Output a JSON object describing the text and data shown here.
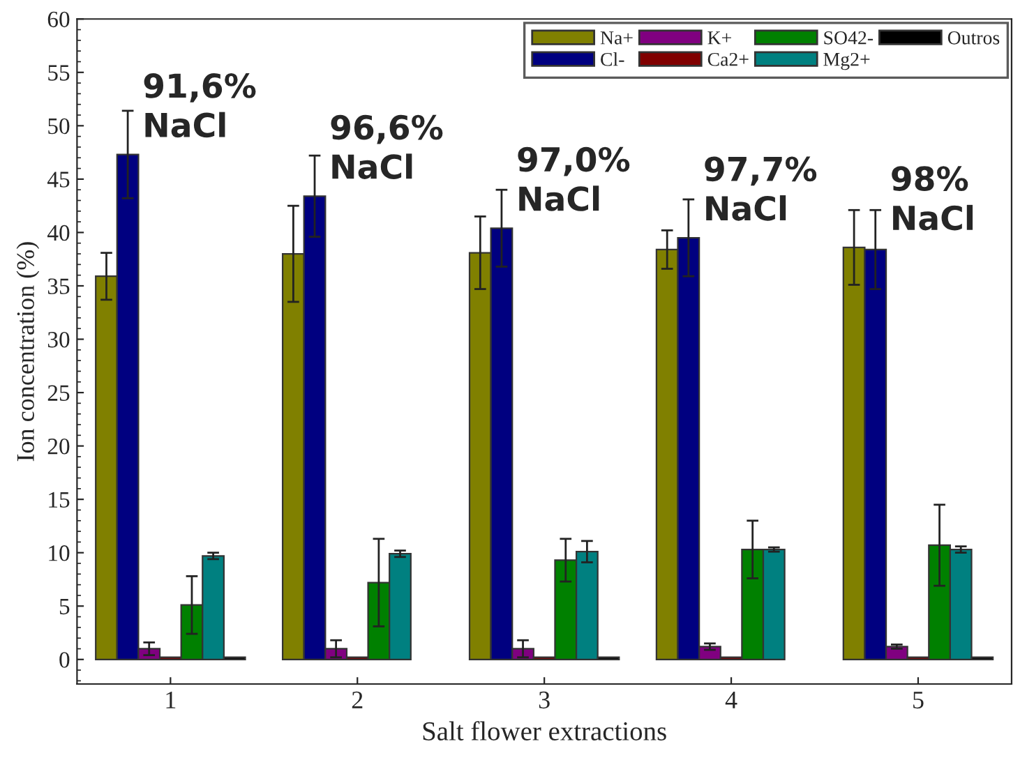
{
  "chart_data": {
    "type": "bar",
    "xlabel": "Salt flower extractions",
    "ylabel": "Ion concentration (%)",
    "categories": [
      "1",
      "2",
      "3",
      "4",
      "5"
    ],
    "series": [
      {
        "name": "Na+",
        "color": "#808000",
        "values": [
          35.9,
          38.0,
          38.1,
          38.4,
          38.6
        ],
        "errors": [
          2.2,
          4.5,
          3.4,
          1.8,
          3.5
        ]
      },
      {
        "name": "Cl-",
        "color": "#000080",
        "values": [
          47.3,
          43.4,
          40.4,
          39.5,
          38.4
        ],
        "errors": [
          4.1,
          3.8,
          3.6,
          3.6,
          3.7
        ]
      },
      {
        "name": "K+",
        "color": "#800080",
        "values": [
          1.0,
          1.0,
          1.0,
          1.2,
          1.2
        ],
        "errors": [
          0.6,
          0.8,
          0.8,
          0.3,
          0.2
        ]
      },
      {
        "name": "Ca2+",
        "color": "#800000",
        "values": [
          0.2,
          0.2,
          0.2,
          0.2,
          0.2
        ]
      },
      {
        "name": "SO42-",
        "color": "#008000",
        "values": [
          5.1,
          7.2,
          9.3,
          10.3,
          10.7
        ],
        "errors": [
          2.7,
          4.1,
          2.0,
          2.7,
          3.8
        ]
      },
      {
        "name": "Mg2+",
        "color": "#008080",
        "values": [
          9.7,
          9.9,
          10.1,
          10.3,
          10.3
        ],
        "errors": [
          0.3,
          0.3,
          1.0,
          0.2,
          0.3
        ]
      },
      {
        "name": "Outros",
        "color": "#000000",
        "values": [
          0.2,
          0.0,
          0.2,
          0.0,
          0.2
        ]
      }
    ],
    "ylim": [
      -2.3,
      60
    ],
    "yticks": [
      0,
      5,
      10,
      15,
      20,
      25,
      30,
      35,
      40,
      45,
      50,
      55,
      60
    ],
    "grid": false,
    "legend": "top right",
    "annotations": [
      "91,6%\nNaCl",
      "96,6%\nNaCl",
      "97,0%\nNaCl",
      "97,7%\nNaCl",
      "98%\nNaCl"
    ]
  }
}
